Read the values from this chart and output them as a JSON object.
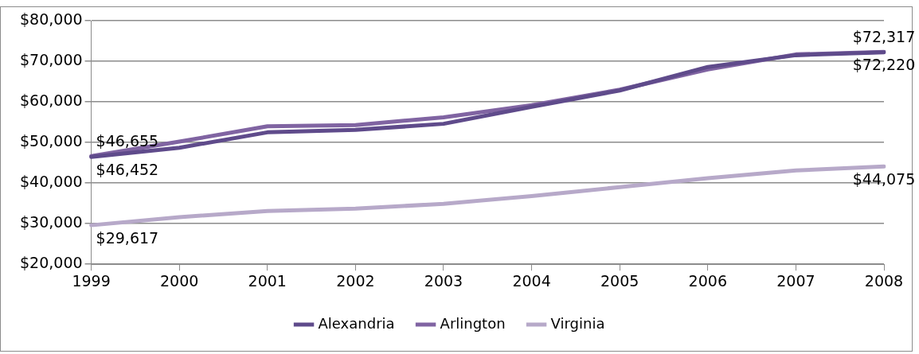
{
  "chart_data": {
    "type": "line",
    "categories": [
      "1999",
      "2000",
      "2001",
      "2002",
      "2003",
      "2004",
      "2005",
      "2006",
      "2007",
      "2008"
    ],
    "series": [
      {
        "name": "Alexandria",
        "color": "#5f4b8b",
        "values": [
          46452,
          48700,
          52500,
          53100,
          54600,
          58800,
          62800,
          68600,
          71500,
          72220
        ]
      },
      {
        "name": "Arlington",
        "color": "#8064a2",
        "values": [
          46655,
          50200,
          54000,
          54300,
          56200,
          59200,
          63000,
          68000,
          71700,
          72317
        ]
      },
      {
        "name": "Virginia",
        "color": "#b7a9c9",
        "values": [
          29617,
          31600,
          33100,
          33700,
          34900,
          36800,
          39000,
          41200,
          43100,
          44075
        ]
      }
    ],
    "ylim": [
      20000,
      80000
    ],
    "yticks": [
      {
        "value": 20000,
        "label": "$20,000"
      },
      {
        "value": 30000,
        "label": "$30,000"
      },
      {
        "value": 40000,
        "label": "$40,000"
      },
      {
        "value": 50000,
        "label": "$50,000"
      },
      {
        "value": 60000,
        "label": "$60,000"
      },
      {
        "value": 70000,
        "label": "$70,000"
      },
      {
        "value": 80000,
        "label": "$80,000"
      }
    ],
    "grid": "y",
    "legend": "bottom",
    "marker": "none",
    "line_style": "solid",
    "annotations": [
      {
        "text": "$46,655",
        "x": "1999",
        "y": 46655
      },
      {
        "text": "$46,452",
        "x": "1999",
        "y": 46452
      },
      {
        "text": "$29,617",
        "x": "1999",
        "y": 29617
      },
      {
        "text": "$72,317",
        "x": "2008",
        "y": 72317
      },
      {
        "text": "$72,220",
        "x": "2008",
        "y": 72220
      },
      {
        "text": "$44,075",
        "x": "2008",
        "y": 44075
      }
    ]
  }
}
